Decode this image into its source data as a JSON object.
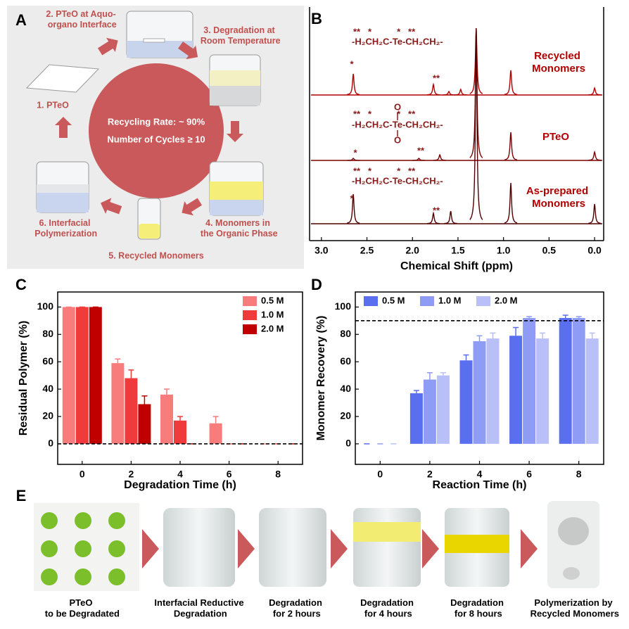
{
  "panel_a": {
    "label": "A",
    "steps": [
      "1. PTeO",
      "2. PTeO at  Aquo-\norgano Interface",
      "3. Degradation at\nRoom Temperature",
      "4. Monomers in\nthe Organic Phase",
      "5. Recycled Monomers",
      "6. Interfacial\nPolymerization"
    ],
    "center_text": [
      "Recycling Rate: ~ 90%",
      "Number of Cycles ≥ 10"
    ]
  },
  "panel_b": {
    "label": "B",
    "formulas": [
      {
        "stars": "**   *          *   **",
        "text": "-H₂CH₂C-Te-CH₂CH₂-"
      },
      {
        "stars": "**   *          *   **",
        "text": "-H₂CH₂C-Te-CH₂CH₂-",
        "oxygens": [
          "O",
          "O"
        ]
      },
      {
        "stars": "**   *          *   **",
        "text": "-H₂CH₂C-Te-CH₂CH₂-"
      }
    ],
    "peak_labels": [
      [
        "*",
        "**"
      ],
      [
        "*",
        "**"
      ],
      [
        "*",
        "**"
      ]
    ]
  },
  "panel_c": {
    "label": "C"
  },
  "panel_d": {
    "label": "D"
  },
  "panel_e": {
    "label": "E",
    "steps": [
      "PTeO\nto be Degradated",
      "Interfacial Reductive\nDegradation",
      "Degradation\nfor 2 hours",
      "Degradation\nfor 4 hours",
      "Degradation\nfor 8 hours",
      "Polymerization by\nRecycled Monomers"
    ]
  },
  "chart_data": [
    {
      "type": "spectrum",
      "xlabel": "Chemical Shift (ppm)",
      "xlim": [
        3.13,
        -0.1
      ],
      "xticks": [
        {
          "value": 3,
          "label": "3.0"
        },
        {
          "value": 2.5,
          "label": "2.5"
        },
        {
          "value": 2,
          "label": "2.0"
        },
        {
          "value": 1.5,
          "label": "1.5"
        },
        {
          "value": 1,
          "label": "1.0"
        },
        {
          "value": 0.5,
          "label": "0.5"
        },
        {
          "value": 0,
          "label": "0.0"
        }
      ],
      "series": [
        {
          "name": "Recycled\nMonomers",
          "color": "#b00000",
          "x": [
            2.65,
            1.77,
            1.6,
            1.47,
            1.3,
            0.92,
            0.0
          ],
          "values": [
            30,
            15,
            5,
            8,
            95,
            35,
            10
          ]
        },
        {
          "name": "PTeO",
          "color": "#7a0000",
          "x": [
            2.65,
            1.93,
            1.7,
            1.3,
            0.92,
            0.0
          ],
          "values": [
            3,
            3,
            8,
            188,
            40,
            12
          ]
        },
        {
          "name": "As-prepared\nMonomers",
          "color": "#500000",
          "x": [
            2.65,
            1.77,
            1.58,
            1.3,
            0.92,
            0.0
          ],
          "values": [
            42,
            15,
            18,
            278,
            58,
            28
          ]
        }
      ]
    },
    {
      "type": "bar",
      "xlabel": "Degradation Time (h)",
      "ylabel": "Residual Polymer (%)",
      "categories": [
        "0",
        "2",
        "4",
        "6",
        "8"
      ],
      "ylim": [
        -15,
        111
      ],
      "yticks": [
        0,
        20,
        40,
        60,
        80,
        100
      ],
      "legend": "upper right",
      "reference_line": 0,
      "series": [
        {
          "name": "0.5 M",
          "color": "#f87c7c",
          "values": [
            100,
            59,
            36,
            15,
            0
          ],
          "errors": [
            0,
            3,
            4,
            5,
            0
          ]
        },
        {
          "name": "1.0 M",
          "color": "#ef3b3b",
          "values": [
            100,
            48,
            17,
            0,
            0
          ],
          "errors": [
            0,
            6,
            3,
            0,
            0
          ]
        },
        {
          "name": "2.0 M",
          "color": "#c00000",
          "values": [
            100,
            29,
            0,
            0,
            0
          ],
          "errors": [
            0,
            6,
            0,
            0,
            0
          ]
        }
      ]
    },
    {
      "type": "bar",
      "xlabel": "Reaction Time (h)",
      "ylabel": "Monomer Recovery (%)",
      "categories": [
        "0",
        "2",
        "4",
        "6",
        "8"
      ],
      "ylim": [
        -15,
        111
      ],
      "yticks": [
        0,
        20,
        40,
        60,
        80,
        100
      ],
      "legend": "upper left",
      "reference_line": 90,
      "series": [
        {
          "name": "0.5 M",
          "color": "#5a6ef0",
          "values": [
            0,
            37,
            61,
            79,
            92
          ],
          "errors": [
            0,
            2,
            4,
            6,
            2
          ]
        },
        {
          "name": "1.0 M",
          "color": "#8f9cf5",
          "values": [
            0,
            47,
            75,
            92,
            92
          ],
          "errors": [
            0,
            5,
            4,
            1,
            1
          ]
        },
        {
          "name": "2.0 M",
          "color": "#b9c0f8",
          "values": [
            0,
            50,
            77,
            77,
            77
          ],
          "errors": [
            0,
            2,
            4,
            4,
            4
          ]
        }
      ]
    }
  ]
}
